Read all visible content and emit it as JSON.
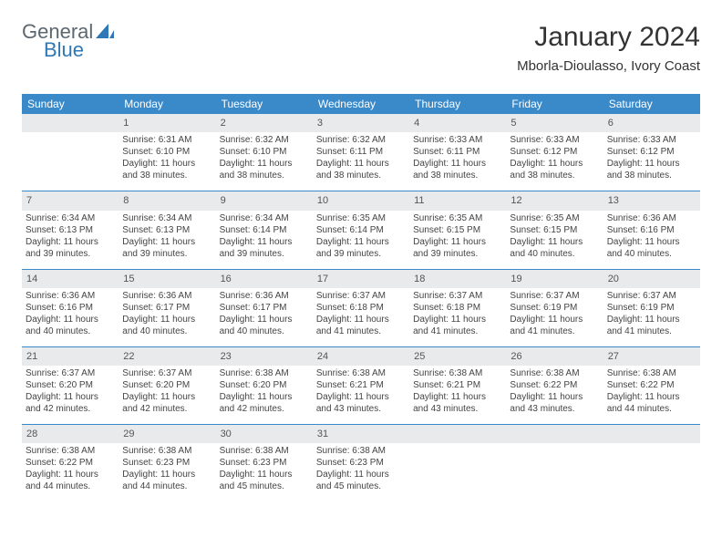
{
  "brand": {
    "line1": "General",
    "line2": "Blue"
  },
  "title": "January 2024",
  "location": "Mborla-Dioulasso, Ivory Coast",
  "colors": {
    "header_bg": "#3a89c9",
    "header_text": "#ffffff",
    "daynum_bg": "#e9eaec",
    "text": "#333333",
    "logo_gray": "#5c6770",
    "logo_blue": "#2f78b7",
    "row_separator": "#3a89c9"
  },
  "weekdays": [
    "Sunday",
    "Monday",
    "Tuesday",
    "Wednesday",
    "Thursday",
    "Friday",
    "Saturday"
  ],
  "weeks": [
    [
      {
        "day": "",
        "sunrise": "",
        "sunset": "",
        "daylight": ""
      },
      {
        "day": "1",
        "sunrise": "Sunrise: 6:31 AM",
        "sunset": "Sunset: 6:10 PM",
        "daylight": "Daylight: 11 hours and 38 minutes."
      },
      {
        "day": "2",
        "sunrise": "Sunrise: 6:32 AM",
        "sunset": "Sunset: 6:10 PM",
        "daylight": "Daylight: 11 hours and 38 minutes."
      },
      {
        "day": "3",
        "sunrise": "Sunrise: 6:32 AM",
        "sunset": "Sunset: 6:11 PM",
        "daylight": "Daylight: 11 hours and 38 minutes."
      },
      {
        "day": "4",
        "sunrise": "Sunrise: 6:33 AM",
        "sunset": "Sunset: 6:11 PM",
        "daylight": "Daylight: 11 hours and 38 minutes."
      },
      {
        "day": "5",
        "sunrise": "Sunrise: 6:33 AM",
        "sunset": "Sunset: 6:12 PM",
        "daylight": "Daylight: 11 hours and 38 minutes."
      },
      {
        "day": "6",
        "sunrise": "Sunrise: 6:33 AM",
        "sunset": "Sunset: 6:12 PM",
        "daylight": "Daylight: 11 hours and 38 minutes."
      }
    ],
    [
      {
        "day": "7",
        "sunrise": "Sunrise: 6:34 AM",
        "sunset": "Sunset: 6:13 PM",
        "daylight": "Daylight: 11 hours and 39 minutes."
      },
      {
        "day": "8",
        "sunrise": "Sunrise: 6:34 AM",
        "sunset": "Sunset: 6:13 PM",
        "daylight": "Daylight: 11 hours and 39 minutes."
      },
      {
        "day": "9",
        "sunrise": "Sunrise: 6:34 AM",
        "sunset": "Sunset: 6:14 PM",
        "daylight": "Daylight: 11 hours and 39 minutes."
      },
      {
        "day": "10",
        "sunrise": "Sunrise: 6:35 AM",
        "sunset": "Sunset: 6:14 PM",
        "daylight": "Daylight: 11 hours and 39 minutes."
      },
      {
        "day": "11",
        "sunrise": "Sunrise: 6:35 AM",
        "sunset": "Sunset: 6:15 PM",
        "daylight": "Daylight: 11 hours and 39 minutes."
      },
      {
        "day": "12",
        "sunrise": "Sunrise: 6:35 AM",
        "sunset": "Sunset: 6:15 PM",
        "daylight": "Daylight: 11 hours and 40 minutes."
      },
      {
        "day": "13",
        "sunrise": "Sunrise: 6:36 AM",
        "sunset": "Sunset: 6:16 PM",
        "daylight": "Daylight: 11 hours and 40 minutes."
      }
    ],
    [
      {
        "day": "14",
        "sunrise": "Sunrise: 6:36 AM",
        "sunset": "Sunset: 6:16 PM",
        "daylight": "Daylight: 11 hours and 40 minutes."
      },
      {
        "day": "15",
        "sunrise": "Sunrise: 6:36 AM",
        "sunset": "Sunset: 6:17 PM",
        "daylight": "Daylight: 11 hours and 40 minutes."
      },
      {
        "day": "16",
        "sunrise": "Sunrise: 6:36 AM",
        "sunset": "Sunset: 6:17 PM",
        "daylight": "Daylight: 11 hours and 40 minutes."
      },
      {
        "day": "17",
        "sunrise": "Sunrise: 6:37 AM",
        "sunset": "Sunset: 6:18 PM",
        "daylight": "Daylight: 11 hours and 41 minutes."
      },
      {
        "day": "18",
        "sunrise": "Sunrise: 6:37 AM",
        "sunset": "Sunset: 6:18 PM",
        "daylight": "Daylight: 11 hours and 41 minutes."
      },
      {
        "day": "19",
        "sunrise": "Sunrise: 6:37 AM",
        "sunset": "Sunset: 6:19 PM",
        "daylight": "Daylight: 11 hours and 41 minutes."
      },
      {
        "day": "20",
        "sunrise": "Sunrise: 6:37 AM",
        "sunset": "Sunset: 6:19 PM",
        "daylight": "Daylight: 11 hours and 41 minutes."
      }
    ],
    [
      {
        "day": "21",
        "sunrise": "Sunrise: 6:37 AM",
        "sunset": "Sunset: 6:20 PM",
        "daylight": "Daylight: 11 hours and 42 minutes."
      },
      {
        "day": "22",
        "sunrise": "Sunrise: 6:37 AM",
        "sunset": "Sunset: 6:20 PM",
        "daylight": "Daylight: 11 hours and 42 minutes."
      },
      {
        "day": "23",
        "sunrise": "Sunrise: 6:38 AM",
        "sunset": "Sunset: 6:20 PM",
        "daylight": "Daylight: 11 hours and 42 minutes."
      },
      {
        "day": "24",
        "sunrise": "Sunrise: 6:38 AM",
        "sunset": "Sunset: 6:21 PM",
        "daylight": "Daylight: 11 hours and 43 minutes."
      },
      {
        "day": "25",
        "sunrise": "Sunrise: 6:38 AM",
        "sunset": "Sunset: 6:21 PM",
        "daylight": "Daylight: 11 hours and 43 minutes."
      },
      {
        "day": "26",
        "sunrise": "Sunrise: 6:38 AM",
        "sunset": "Sunset: 6:22 PM",
        "daylight": "Daylight: 11 hours and 43 minutes."
      },
      {
        "day": "27",
        "sunrise": "Sunrise: 6:38 AM",
        "sunset": "Sunset: 6:22 PM",
        "daylight": "Daylight: 11 hours and 44 minutes."
      }
    ],
    [
      {
        "day": "28",
        "sunrise": "Sunrise: 6:38 AM",
        "sunset": "Sunset: 6:22 PM",
        "daylight": "Daylight: 11 hours and 44 minutes."
      },
      {
        "day": "29",
        "sunrise": "Sunrise: 6:38 AM",
        "sunset": "Sunset: 6:23 PM",
        "daylight": "Daylight: 11 hours and 44 minutes."
      },
      {
        "day": "30",
        "sunrise": "Sunrise: 6:38 AM",
        "sunset": "Sunset: 6:23 PM",
        "daylight": "Daylight: 11 hours and 45 minutes."
      },
      {
        "day": "31",
        "sunrise": "Sunrise: 6:38 AM",
        "sunset": "Sunset: 6:23 PM",
        "daylight": "Daylight: 11 hours and 45 minutes."
      },
      {
        "day": "",
        "sunrise": "",
        "sunset": "",
        "daylight": ""
      },
      {
        "day": "",
        "sunrise": "",
        "sunset": "",
        "daylight": ""
      },
      {
        "day": "",
        "sunrise": "",
        "sunset": "",
        "daylight": ""
      }
    ]
  ]
}
